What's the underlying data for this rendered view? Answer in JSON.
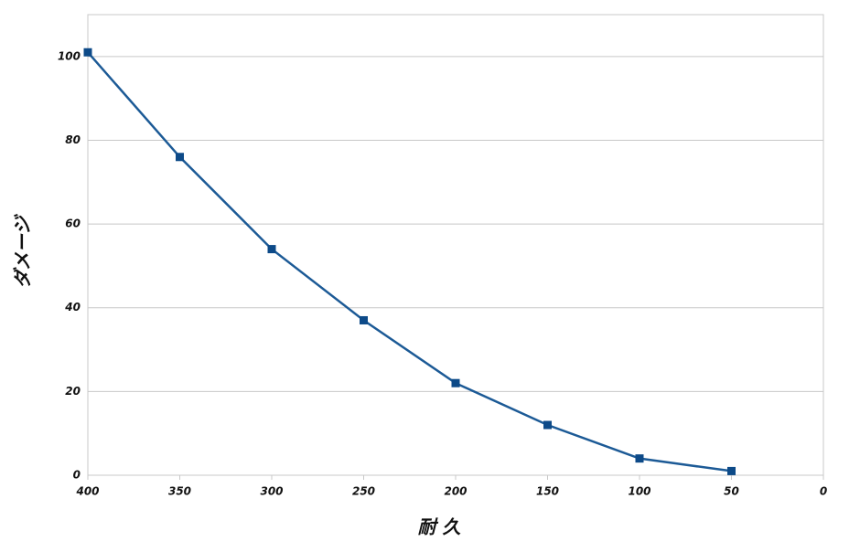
{
  "chart_data": {
    "type": "line",
    "x_label": "耐 久",
    "y_label": "ダメージ",
    "x": [
      400,
      350,
      300,
      250,
      200,
      150,
      100,
      50
    ],
    "values": [
      101,
      76,
      54,
      37,
      22,
      12,
      4,
      1
    ],
    "color": "#1c5a96",
    "marker_color": "#0d4a88",
    "xlim": [
      400,
      0
    ],
    "xticks": [
      400,
      350,
      300,
      250,
      200,
      150,
      100,
      50,
      0
    ],
    "ylim": [
      0,
      110
    ],
    "yticks": [
      0,
      20,
      40,
      60,
      80,
      100
    ],
    "grid": true
  }
}
